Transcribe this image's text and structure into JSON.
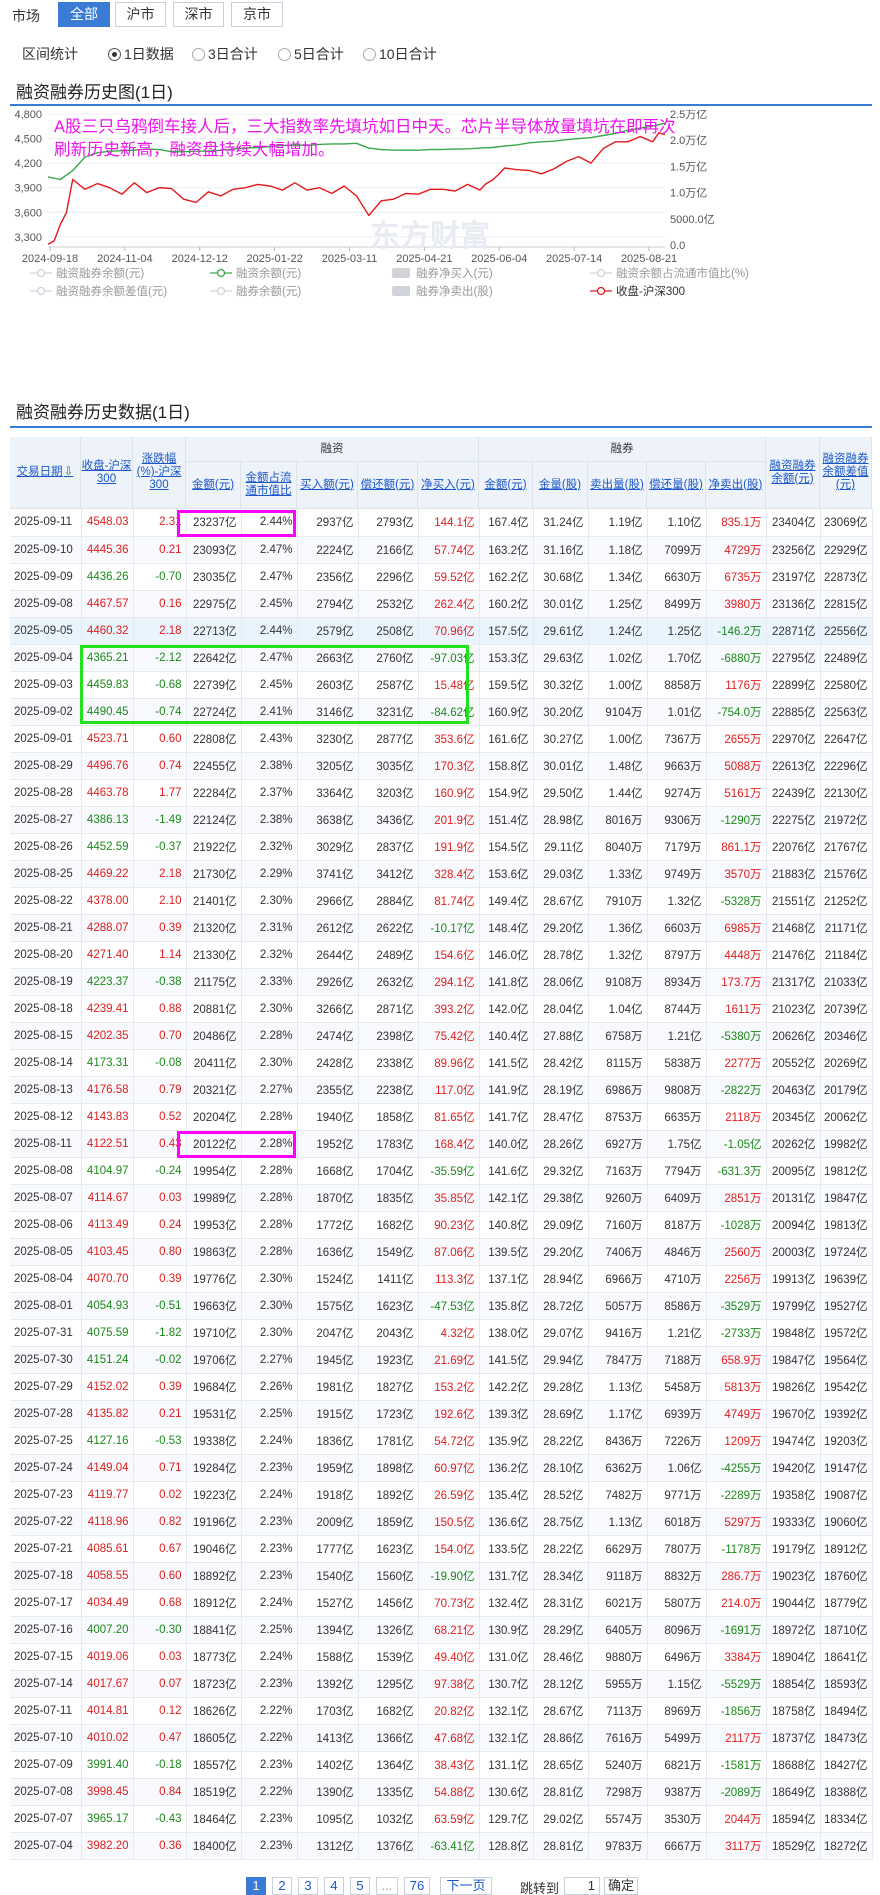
{
  "market": {
    "label": "市场",
    "tabs": [
      "全部",
      "沪市",
      "深市",
      "京市"
    ],
    "active": 0
  },
  "period": {
    "label": "区间统计",
    "options": [
      "1日数据",
      "3日合计",
      "5日合计",
      "10日合计"
    ],
    "selected": 0
  },
  "chart_section": {
    "title": "融资融券历史图(1日)",
    "annotation_line1": "A股三只乌鸦倒车接人后，三大指数率先填坑如日中天。芯片半导体放量填坑在即再次",
    "annotation_line2": "刷新历史新高，融资盘持续大幅增加。",
    "watermark": "东方财富"
  },
  "chart_data": {
    "type": "line",
    "x_ticks": [
      "2024-09-18",
      "2024-11-04",
      "2024-12-12",
      "2025-01-22",
      "2025-03-11",
      "2025-04-21",
      "2025-06-04",
      "2025-07-14",
      "2025-08-21"
    ],
    "y_left_ticks": [
      "4,800",
      "4,500",
      "4,200",
      "3,900",
      "3,600",
      "3,300"
    ],
    "y_right_ticks": [
      "2.5万亿",
      "2.0万亿",
      "1.5万亿",
      "1.0万亿",
      "5000.0亿",
      "0.0"
    ],
    "ylim_left": [
      3200,
      4800
    ],
    "ylim_right": [
      0,
      25000
    ],
    "series": [
      {
        "name": "收盘-沪深300",
        "color": "#e31a1c",
        "axis": "left",
        "x": [
          0,
          0.5,
          1,
          1.5,
          2,
          3,
          4,
          5,
          6,
          7,
          8,
          9,
          10,
          11,
          12,
          13,
          14,
          15,
          16,
          17,
          18,
          19,
          20,
          21,
          22,
          23,
          24,
          25,
          26,
          27,
          28,
          29,
          30,
          31,
          32,
          33,
          34,
          35,
          35.5,
          36,
          36.5,
          37,
          38,
          39,
          40,
          41,
          42,
          43,
          44,
          45,
          46,
          47,
          48,
          49,
          49.5,
          50
        ],
        "y": [
          3210,
          3250,
          3450,
          3600,
          4000,
          3880,
          3950,
          3900,
          3820,
          3960,
          3840,
          3900,
          3890,
          3760,
          3720,
          3850,
          3800,
          3880,
          3900,
          3940,
          3920,
          3870,
          3960,
          3870,
          3900,
          3830,
          3920,
          3800,
          3560,
          3740,
          3760,
          3830,
          3820,
          3880,
          3880,
          3860,
          3940,
          3870,
          3950,
          3990,
          4060,
          4140,
          4120,
          4110,
          4070,
          4130,
          4220,
          4280,
          4200,
          4380,
          4460,
          4460,
          4525,
          4460,
          4570,
          4548
        ]
      },
      {
        "name": "融资余额(元)",
        "color": "#3aa84b",
        "axis": "right",
        "x": [
          0,
          1,
          2,
          3,
          4,
          5,
          6,
          7,
          8,
          9,
          10,
          11,
          12,
          13,
          14,
          15,
          16,
          17,
          18,
          19,
          20,
          21,
          22,
          23,
          24,
          25,
          26,
          27,
          28,
          29,
          30,
          31,
          32,
          33,
          34,
          35,
          36,
          37,
          38,
          39,
          40,
          41,
          42,
          43,
          44,
          45,
          46,
          47,
          48,
          49,
          50
        ],
        "y": [
          13000,
          12500,
          14200,
          16800,
          17600,
          17900,
          18000,
          18100,
          18300,
          18200,
          17800,
          17800,
          17900,
          17900,
          18100,
          18300,
          18500,
          18600,
          18800,
          19000,
          19100,
          19000,
          19200,
          19300,
          19300,
          19400,
          18500,
          18200,
          18100,
          18100,
          18100,
          18200,
          18250,
          18300,
          18350,
          18500,
          18600,
          18900,
          19100,
          19500,
          19700,
          19800,
          20100,
          20300,
          20500,
          20900,
          21300,
          21900,
          22300,
          22700,
          23237
        ]
      }
    ]
  },
  "legend": [
    "融资融券余额(元)",
    "融资余额(元)",
    "融券净买入(元)",
    "融资余额占流通市值比(%)",
    "融资融券余额差值(元)",
    "融券余额(元)",
    "融券净卖出(股)",
    "收盘-沪深300"
  ],
  "table_section": {
    "title": "融资融券历史数据(1日)"
  },
  "headers": {
    "date": "交易日期",
    "close": "收盘-沪深300",
    "chg": "涨跌幅(%)-沪深300",
    "rz_group": "融资",
    "rq_group": "融券",
    "rz": [
      "金额(元)",
      "金额占流通市值比",
      "买入额(元)",
      "偿还额(元)",
      "净买入(元)"
    ],
    "rq": [
      "金额(元)",
      "金量(股)",
      "卖出量(股)",
      "偿还量(股)",
      "净卖出(股)"
    ],
    "bal": "融资融券余额(元)",
    "diff": "融资融券余额差值(元)"
  },
  "rows": [
    [
      "2025-09-11",
      "4548.03",
      "2.31",
      "23237亿",
      "2.44%",
      "2937亿",
      "2793亿",
      "144.1亿",
      "167.4亿",
      "31.24亿",
      "1.19亿",
      "1.10亿",
      "835.1万",
      "23404亿",
      "23069亿"
    ],
    [
      "2025-09-10",
      "4445.36",
      "0.21",
      "23093亿",
      "2.47%",
      "2224亿",
      "2166亿",
      "57.74亿",
      "163.2亿",
      "31.16亿",
      "1.18亿",
      "7099万",
      "4729万",
      "23256亿",
      "22929亿"
    ],
    [
      "2025-09-09",
      "4436.26",
      "-0.70",
      "23035亿",
      "2.47%",
      "2356亿",
      "2296亿",
      "59.52亿",
      "162.2亿",
      "30.68亿",
      "1.34亿",
      "6630万",
      "6735万",
      "23197亿",
      "22873亿"
    ],
    [
      "2025-09-08",
      "4467.57",
      "0.16",
      "22975亿",
      "2.45%",
      "2794亿",
      "2532亿",
      "262.4亿",
      "160.2亿",
      "30.01亿",
      "1.25亿",
      "8499万",
      "3980万",
      "23136亿",
      "22815亿"
    ],
    [
      "2025-09-05",
      "4460.32",
      "2.18",
      "22713亿",
      "2.44%",
      "2579亿",
      "2508亿",
      "70.96亿",
      "157.5亿",
      "29.61亿",
      "1.24亿",
      "1.25亿",
      "-146.2万",
      "22871亿",
      "22556亿"
    ],
    [
      "2025-09-04",
      "4365.21",
      "-2.12",
      "22642亿",
      "2.47%",
      "2663亿",
      "2760亿",
      "-97.03亿",
      "153.3亿",
      "29.63亿",
      "1.02亿",
      "1.70亿",
      "-6880万",
      "22795亿",
      "22489亿"
    ],
    [
      "2025-09-03",
      "4459.83",
      "-0.68",
      "22739亿",
      "2.45%",
      "2603亿",
      "2587亿",
      "15.48亿",
      "159.5亿",
      "30.32亿",
      "1.00亿",
      "8858万",
      "1176万",
      "22899亿",
      "22580亿"
    ],
    [
      "2025-09-02",
      "4490.45",
      "-0.74",
      "22724亿",
      "2.41%",
      "3146亿",
      "3231亿",
      "-84.62亿",
      "160.9亿",
      "30.20亿",
      "9104万",
      "1.01亿",
      "-754.0万",
      "22885亿",
      "22563亿"
    ],
    [
      "2025-09-01",
      "4523.71",
      "0.60",
      "22808亿",
      "2.43%",
      "3230亿",
      "2877亿",
      "353.6亿",
      "161.6亿",
      "30.27亿",
      "1.00亿",
      "7367万",
      "2655万",
      "22970亿",
      "22647亿"
    ],
    [
      "2025-08-29",
      "4496.76",
      "0.74",
      "22455亿",
      "2.38%",
      "3205亿",
      "3035亿",
      "170.3亿",
      "158.8亿",
      "30.01亿",
      "1.48亿",
      "9663万",
      "5088万",
      "22613亿",
      "22296亿"
    ],
    [
      "2025-08-28",
      "4463.78",
      "1.77",
      "22284亿",
      "2.37%",
      "3364亿",
      "3203亿",
      "160.9亿",
      "154.9亿",
      "29.50亿",
      "1.44亿",
      "9274万",
      "5161万",
      "22439亿",
      "22130亿"
    ],
    [
      "2025-08-27",
      "4386.13",
      "-1.49",
      "22124亿",
      "2.38%",
      "3638亿",
      "3436亿",
      "201.9亿",
      "151.4亿",
      "28.98亿",
      "8016万",
      "9306万",
      "-1290万",
      "22275亿",
      "21972亿"
    ],
    [
      "2025-08-26",
      "4452.59",
      "-0.37",
      "21922亿",
      "2.32%",
      "3029亿",
      "2837亿",
      "191.9亿",
      "154.5亿",
      "29.11亿",
      "8040万",
      "7179万",
      "861.1万",
      "22076亿",
      "21767亿"
    ],
    [
      "2025-08-25",
      "4469.22",
      "2.18",
      "21730亿",
      "2.29%",
      "3741亿",
      "3412亿",
      "328.4亿",
      "153.6亿",
      "29.03亿",
      "1.33亿",
      "9749万",
      "3570万",
      "21883亿",
      "21576亿"
    ],
    [
      "2025-08-22",
      "4378.00",
      "2.10",
      "21401亿",
      "2.30%",
      "2966亿",
      "2884亿",
      "81.74亿",
      "149.4亿",
      "28.67亿",
      "7910万",
      "1.32亿",
      "-5328万",
      "21551亿",
      "21252亿"
    ],
    [
      "2025-08-21",
      "4288.07",
      "0.39",
      "21320亿",
      "2.31%",
      "2612亿",
      "2622亿",
      "-10.17亿",
      "148.4亿",
      "29.20亿",
      "1.36亿",
      "6603万",
      "6985万",
      "21468亿",
      "21171亿"
    ],
    [
      "2025-08-20",
      "4271.40",
      "1.14",
      "21330亿",
      "2.32%",
      "2644亿",
      "2489亿",
      "154.6亿",
      "146.0亿",
      "28.78亿",
      "1.32亿",
      "8797万",
      "4448万",
      "21476亿",
      "21184亿"
    ],
    [
      "2025-08-19",
      "4223.37",
      "-0.38",
      "21175亿",
      "2.33%",
      "2926亿",
      "2632亿",
      "294.1亿",
      "141.8亿",
      "28.06亿",
      "9108万",
      "8934万",
      "173.7万",
      "21317亿",
      "21033亿"
    ],
    [
      "2025-08-18",
      "4239.41",
      "0.88",
      "20881亿",
      "2.30%",
      "3266亿",
      "2871亿",
      "393.2亿",
      "142.0亿",
      "28.04亿",
      "1.04亿",
      "8744万",
      "1611万",
      "21023亿",
      "20739亿"
    ],
    [
      "2025-08-15",
      "4202.35",
      "0.70",
      "20486亿",
      "2.28%",
      "2474亿",
      "2398亿",
      "75.42亿",
      "140.4亿",
      "27.88亿",
      "6758万",
      "1.21亿",
      "-5380万",
      "20626亿",
      "20346亿"
    ],
    [
      "2025-08-14",
      "4173.31",
      "-0.08",
      "20411亿",
      "2.30%",
      "2428亿",
      "2338亿",
      "89.96亿",
      "141.5亿",
      "28.42亿",
      "8115万",
      "5838万",
      "2277万",
      "20552亿",
      "20269亿"
    ],
    [
      "2025-08-13",
      "4176.58",
      "0.79",
      "20321亿",
      "2.27%",
      "2355亿",
      "2238亿",
      "117.0亿",
      "141.9亿",
      "28.19亿",
      "6986万",
      "9808万",
      "-2822万",
      "20463亿",
      "20179亿"
    ],
    [
      "2025-08-12",
      "4143.83",
      "0.52",
      "20204亿",
      "2.28%",
      "1940亿",
      "1858亿",
      "81.65亿",
      "141.7亿",
      "28.47亿",
      "8753万",
      "6635万",
      "2118万",
      "20345亿",
      "20062亿"
    ],
    [
      "2025-08-11",
      "4122.51",
      "0.43",
      "20122亿",
      "2.28%",
      "1952亿",
      "1783亿",
      "168.4亿",
      "140.0亿",
      "28.26亿",
      "6927万",
      "1.75亿",
      "-1.05亿",
      "20262亿",
      "19982亿"
    ],
    [
      "2025-08-08",
      "4104.97",
      "-0.24",
      "19954亿",
      "2.28%",
      "1668亿",
      "1704亿",
      "-35.59亿",
      "141.6亿",
      "29.32亿",
      "7163万",
      "7794万",
      "-631.3万",
      "20095亿",
      "19812亿"
    ],
    [
      "2025-08-07",
      "4114.67",
      "0.03",
      "19989亿",
      "2.28%",
      "1870亿",
      "1835亿",
      "35.85亿",
      "142.1亿",
      "29.38亿",
      "9260万",
      "6409万",
      "2851万",
      "20131亿",
      "19847亿"
    ],
    [
      "2025-08-06",
      "4113.49",
      "0.24",
      "19953亿",
      "2.28%",
      "1772亿",
      "1682亿",
      "90.23亿",
      "140.8亿",
      "29.09亿",
      "7160万",
      "8187万",
      "-1028万",
      "20094亿",
      "19813亿"
    ],
    [
      "2025-08-05",
      "4103.45",
      "0.80",
      "19863亿",
      "2.28%",
      "1636亿",
      "1549亿",
      "87.06亿",
      "139.5亿",
      "29.20亿",
      "7406万",
      "4846万",
      "2560万",
      "20003亿",
      "19724亿"
    ],
    [
      "2025-08-04",
      "4070.70",
      "0.39",
      "19776亿",
      "2.30%",
      "1524亿",
      "1411亿",
      "113.3亿",
      "137.1亿",
      "28.94亿",
      "6966万",
      "4710万",
      "2256万",
      "19913亿",
      "19639亿"
    ],
    [
      "2025-08-01",
      "4054.93",
      "-0.51",
      "19663亿",
      "2.30%",
      "1575亿",
      "1623亿",
      "-47.53亿",
      "135.8亿",
      "28.72亿",
      "5057万",
      "8586万",
      "-3529万",
      "19799亿",
      "19527亿"
    ],
    [
      "2025-07-31",
      "4075.59",
      "-1.82",
      "19710亿",
      "2.30%",
      "2047亿",
      "2043亿",
      "4.32亿",
      "138.0亿",
      "29.07亿",
      "9416万",
      "1.21亿",
      "-2733万",
      "19848亿",
      "19572亿"
    ],
    [
      "2025-07-30",
      "4151.24",
      "-0.02",
      "19706亿",
      "2.27%",
      "1945亿",
      "1923亿",
      "21.69亿",
      "141.5亿",
      "29.94亿",
      "7847万",
      "7188万",
      "658.9万",
      "19847亿",
      "19564亿"
    ],
    [
      "2025-07-29",
      "4152.02",
      "0.39",
      "19684亿",
      "2.26%",
      "1981亿",
      "1827亿",
      "153.2亿",
      "142.2亿",
      "29.28亿",
      "1.13亿",
      "5458万",
      "5813万",
      "19826亿",
      "19542亿"
    ],
    [
      "2025-07-28",
      "4135.82",
      "0.21",
      "19531亿",
      "2.25%",
      "1915亿",
      "1723亿",
      "192.6亿",
      "139.3亿",
      "28.69亿",
      "1.17亿",
      "6939万",
      "4749万",
      "19670亿",
      "19392亿"
    ],
    [
      "2025-07-25",
      "4127.16",
      "-0.53",
      "19338亿",
      "2.24%",
      "1836亿",
      "1781亿",
      "54.72亿",
      "135.9亿",
      "28.22亿",
      "8436万",
      "7226万",
      "1209万",
      "19474亿",
      "19203亿"
    ],
    [
      "2025-07-24",
      "4149.04",
      "0.71",
      "19284亿",
      "2.23%",
      "1959亿",
      "1898亿",
      "60.97亿",
      "136.2亿",
      "28.10亿",
      "6362万",
      "1.06亿",
      "-4255万",
      "19420亿",
      "19147亿"
    ],
    [
      "2025-07-23",
      "4119.77",
      "0.02",
      "19223亿",
      "2.24%",
      "1918亿",
      "1892亿",
      "26.59亿",
      "135.4亿",
      "28.52亿",
      "7482万",
      "9771万",
      "-2289万",
      "19358亿",
      "19087亿"
    ],
    [
      "2025-07-22",
      "4118.96",
      "0.82",
      "19196亿",
      "2.23%",
      "2009亿",
      "1859亿",
      "150.5亿",
      "136.6亿",
      "28.75亿",
      "1.13亿",
      "6018万",
      "5297万",
      "19333亿",
      "19060亿"
    ],
    [
      "2025-07-21",
      "4085.61",
      "0.67",
      "19046亿",
      "2.23%",
      "1777亿",
      "1623亿",
      "154.0亿",
      "133.5亿",
      "28.22亿",
      "6629万",
      "7807万",
      "-1178万",
      "19179亿",
      "18912亿"
    ],
    [
      "2025-07-18",
      "4058.55",
      "0.60",
      "18892亿",
      "2.23%",
      "1540亿",
      "1560亿",
      "-19.90亿",
      "131.7亿",
      "28.34亿",
      "9118万",
      "8832万",
      "286.7万",
      "19023亿",
      "18760亿"
    ],
    [
      "2025-07-17",
      "4034.49",
      "0.68",
      "18912亿",
      "2.24%",
      "1527亿",
      "1456亿",
      "70.73亿",
      "132.4亿",
      "28.31亿",
      "6021万",
      "5807万",
      "214.0万",
      "19044亿",
      "18779亿"
    ],
    [
      "2025-07-16",
      "4007.20",
      "-0.30",
      "18841亿",
      "2.25%",
      "1394亿",
      "1326亿",
      "68.21亿",
      "130.9亿",
      "28.29亿",
      "6405万",
      "8096万",
      "-1691万",
      "18972亿",
      "18710亿"
    ],
    [
      "2025-07-15",
      "4019.06",
      "0.03",
      "18773亿",
      "2.24%",
      "1588亿",
      "1539亿",
      "49.40亿",
      "131.0亿",
      "28.46亿",
      "9880万",
      "6496万",
      "3384万",
      "18904亿",
      "18641亿"
    ],
    [
      "2025-07-14",
      "4017.67",
      "0.07",
      "18723亿",
      "2.23%",
      "1392亿",
      "1295亿",
      "97.38亿",
      "130.7亿",
      "28.12亿",
      "5955万",
      "1.15亿",
      "-5529万",
      "18854亿",
      "18593亿"
    ],
    [
      "2025-07-11",
      "4014.81",
      "0.12",
      "18626亿",
      "2.22%",
      "1703亿",
      "1682亿",
      "20.82亿",
      "132.1亿",
      "28.67亿",
      "7113万",
      "8969万",
      "-1856万",
      "18758亿",
      "18494亿"
    ],
    [
      "2025-07-10",
      "4010.02",
      "0.47",
      "18605亿",
      "2.22%",
      "1413亿",
      "1366亿",
      "47.68亿",
      "132.1亿",
      "28.86亿",
      "7616万",
      "5499万",
      "2117万",
      "18737亿",
      "18473亿"
    ],
    [
      "2025-07-09",
      "3991.40",
      "-0.18",
      "18557亿",
      "2.23%",
      "1402亿",
      "1364亿",
      "38.43亿",
      "131.1亿",
      "28.65亿",
      "5240万",
      "6821万",
      "-1581万",
      "18688亿",
      "18427亿"
    ],
    [
      "2025-07-08",
      "3998.45",
      "0.84",
      "18519亿",
      "2.22%",
      "1390亿",
      "1335亿",
      "54.88亿",
      "130.6亿",
      "28.81亿",
      "7298万",
      "9387万",
      "-2089万",
      "18649亿",
      "18388亿"
    ],
    [
      "2025-07-07",
      "3965.17",
      "-0.43",
      "18464亿",
      "2.23%",
      "1095亿",
      "1032亿",
      "63.59亿",
      "129.7亿",
      "29.02亿",
      "5574万",
      "3530万",
      "2044万",
      "18594亿",
      "18334亿"
    ],
    [
      "2025-07-04",
      "3982.20",
      "0.36",
      "18400亿",
      "2.23%",
      "1312亿",
      "1376亿",
      "-63.41亿",
      "128.8亿",
      "28.81亿",
      "9783万",
      "6667万",
      "3117万",
      "18529亿",
      "18272亿"
    ]
  ],
  "highlight_row": 4,
  "pagination": {
    "pages": [
      "1",
      "2",
      "3",
      "4",
      "5",
      "...",
      "76"
    ],
    "next": "下一页",
    "goto_label": "跳转到",
    "goto_value": "1",
    "confirm": "确定"
  },
  "colors": {
    "accent": "#3a7bd5",
    "up": "#e01d1d",
    "down": "#1a8a1a",
    "magenta_box": "#ff00ff",
    "green_box": "#22e21e"
  }
}
